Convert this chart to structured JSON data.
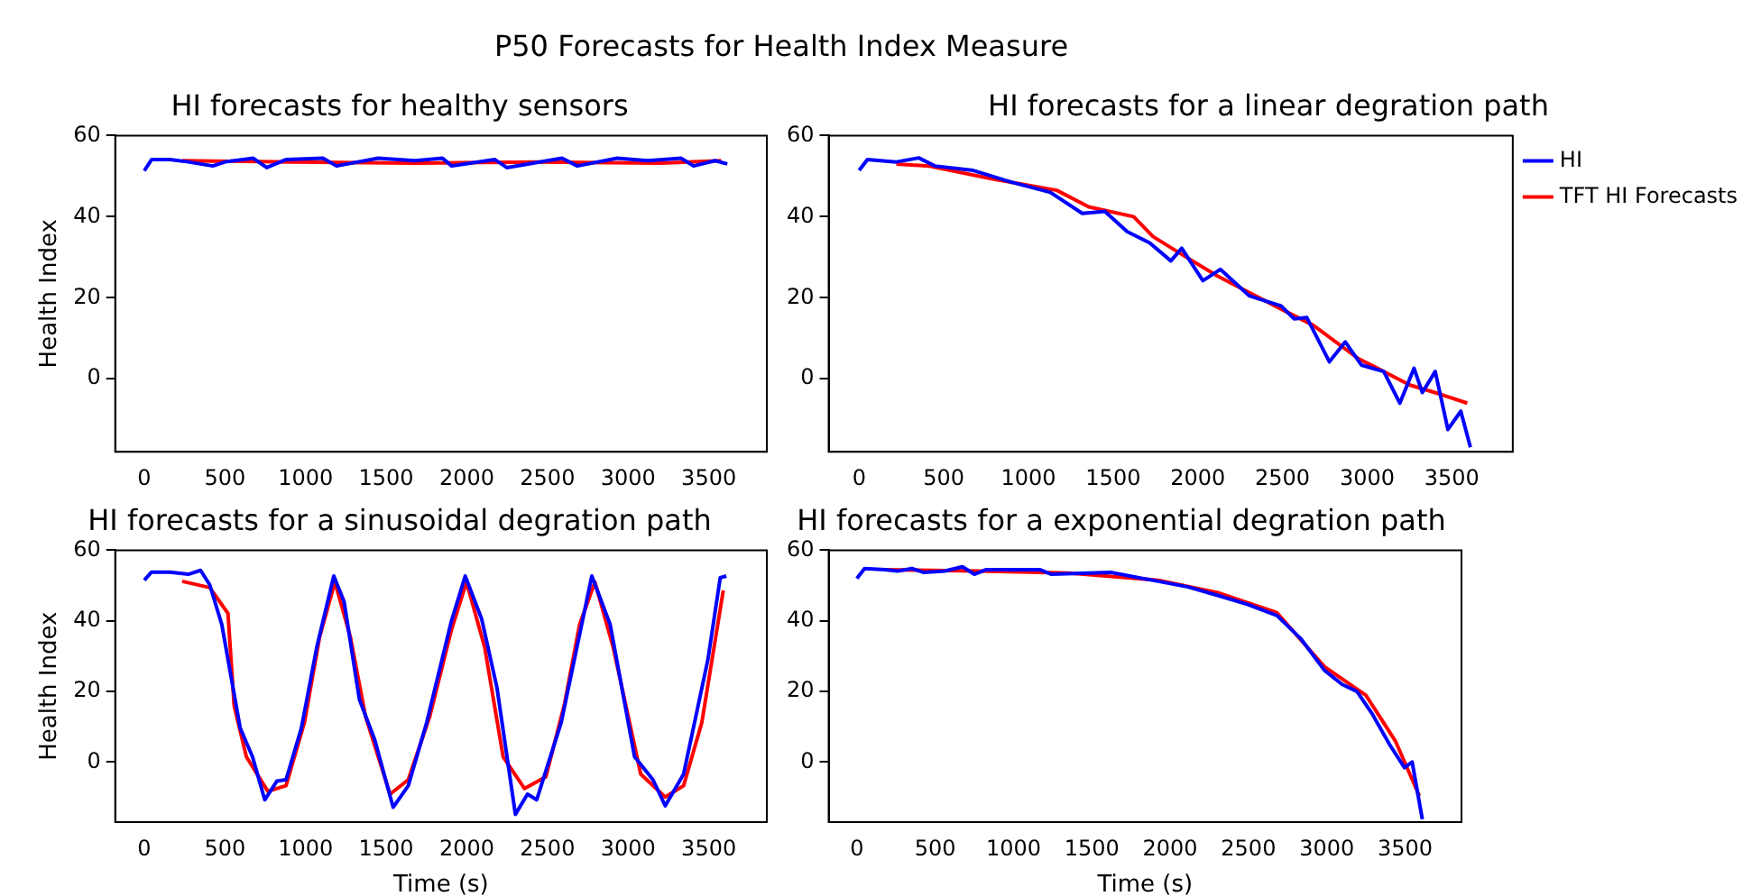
{
  "chart_data": [
    {
      "type": "other",
      "title": "P50 Forecasts for Health Index Measure"
    },
    {
      "type": "line",
      "title": "HI forecasts for healthy sensors",
      "ylabel": "Health Index",
      "xlim": [
        -180,
        3860
      ],
      "ylim": [
        -18,
        60
      ],
      "xticks": [
        0,
        500,
        1000,
        1500,
        2000,
        2500,
        3000,
        3500
      ],
      "yticks": [
        0,
        20,
        40,
        60
      ],
      "grid": false,
      "legend": false,
      "marker": "none",
      "line_style": "solid",
      "series": [
        {
          "color": "#0000ff",
          "x": [
            0,
            46,
            159,
            273,
            425,
            501,
            676,
            759,
            881,
            1108,
            1192,
            1450,
            1678,
            1849,
            1906,
            2172,
            2248,
            2590,
            2685,
            2932,
            3121,
            3330,
            3406,
            3539,
            3615
          ],
          "values": [
            51.3,
            54.1,
            54.1,
            53.5,
            52.5,
            53.5,
            54.4,
            52.1,
            54.1,
            54.4,
            52.5,
            54.4,
            53.8,
            54.4,
            52.5,
            54.1,
            52.1,
            54.4,
            52.5,
            54.4,
            53.8,
            54.4,
            52.5,
            53.8,
            53
          ]
        },
        {
          "color": "#ff0000",
          "x": [
            235,
            918,
            1678,
            2438,
            3197,
            3577
          ],
          "values": [
            53.8,
            53.5,
            53.2,
            53.5,
            53.2,
            53.8
          ]
        }
      ]
    },
    {
      "type": "line",
      "title": "HI forecasts for a linear degration path",
      "xlim": [
        -180,
        3860
      ],
      "ylim": [
        -18,
        60
      ],
      "xticks": [
        0,
        500,
        1000,
        1500,
        2000,
        2500,
        3000,
        3500
      ],
      "yticks": [
        0,
        20,
        40,
        60
      ],
      "grid": false,
      "legend": "top right",
      "marker": "none",
      "line_style": "solid",
      "series": [
        {
          "name": "HI",
          "color": "#0000ff",
          "x": [
            0,
            49,
            220,
            352,
            447,
            674,
            900,
            1129,
            1318,
            1451,
            1583,
            1716,
            1841,
            1905,
            2030,
            2133,
            2303,
            2492,
            2568,
            2644,
            2777,
            2871,
            2966,
            3098,
            3193,
            3277,
            3326,
            3402,
            3477,
            3553,
            3610
          ],
          "values": [
            51.4,
            54.1,
            53.5,
            54.5,
            52.5,
            51.4,
            48.5,
            46,
            40.8,
            41.3,
            36.3,
            33.5,
            29.1,
            32.2,
            24.2,
            27,
            20.5,
            18,
            14.8,
            15.1,
            4.2,
            9.1,
            3.4,
            1.8,
            -6,
            2.6,
            -3.4,
            1.8,
            -12.5,
            -8,
            -16.9
          ]
        },
        {
          "name": "TFT HI Forecasts",
          "color": "#ff0000",
          "x": [
            220,
            409,
            788,
            1167,
            1356,
            1621,
            1735,
            1924,
            2114,
            2303,
            2492,
            2682,
            2947,
            3061,
            3250,
            3440,
            3591
          ],
          "values": [
            53,
            52.5,
            49.3,
            46.5,
            42.4,
            40,
            35.1,
            30.2,
            25.4,
            21.3,
            17.2,
            13.2,
            5,
            2.6,
            -1.5,
            -3.9,
            -6
          ]
        }
      ]
    },
    {
      "type": "line",
      "title": "HI forecasts for a sinusoidal degration path",
      "xlabel": "Time (s)",
      "ylabel": "Health Index",
      "xlim": [
        -180,
        3860
      ],
      "ylim": [
        -17,
        60
      ],
      "xticks": [
        0,
        500,
        1000,
        1500,
        2000,
        2500,
        3000,
        3500
      ],
      "yticks": [
        0,
        20,
        40,
        60
      ],
      "grid": false,
      "legend": false,
      "marker": "none",
      "line_style": "solid",
      "series": [
        {
          "color": "#0000ff",
          "x": [
            0,
            45,
            159,
            273,
            349,
            406,
            481,
            538,
            595,
            671,
            747,
            822,
            879,
            974,
            1069,
            1175,
            1239,
            1334,
            1429,
            1543,
            1637,
            1751,
            1903,
            1990,
            2092,
            2187,
            2301,
            2376,
            2433,
            2585,
            2775,
            2889,
            3040,
            3154,
            3230,
            3344,
            3495,
            3571,
            3609
          ],
          "values": [
            51.5,
            53.8,
            53.8,
            53.2,
            54.3,
            50.2,
            38.9,
            24.2,
            9.6,
            1.5,
            -10.7,
            -5.4,
            -5,
            9.6,
            32.4,
            52.7,
            45.4,
            17.7,
            6.3,
            -12.8,
            -6.7,
            11.2,
            39.7,
            52.7,
            40.5,
            21,
            -14.8,
            -9.1,
            -10.7,
            11.2,
            52.7,
            38.9,
            1.5,
            -5,
            -12.4,
            -3.4,
            29.1,
            52.2,
            52.7
          ]
        },
        {
          "color": "#ff0000",
          "x": [
            235,
            406,
            519,
            557,
            633,
            766,
            879,
            993,
            1088,
            1182,
            1277,
            1372,
            1524,
            1637,
            1770,
            1903,
            1998,
            2111,
            2225,
            2358,
            2490,
            2604,
            2699,
            2794,
            2908,
            3078,
            3230,
            3344,
            3457,
            3590
          ],
          "values": [
            51.2,
            49.4,
            42.1,
            16,
            1.5,
            -8.3,
            -6.7,
            11.2,
            35.6,
            51,
            35.6,
            12.9,
            -9.1,
            -5,
            12.9,
            37.2,
            51,
            32.4,
            1.5,
            -7.5,
            -4.2,
            16.1,
            38.9,
            51,
            32.4,
            -3.4,
            -9.9,
            -6.7,
            11.2,
            48.6
          ]
        }
      ]
    },
    {
      "type": "line",
      "title": "HI forecasts for a exponential degration path",
      "xlabel": "Time (s)",
      "xlim": [
        -180,
        3860
      ],
      "ylim": [
        -17,
        60
      ],
      "xticks": [
        0,
        500,
        1000,
        1500,
        2000,
        2500,
        3000,
        3500
      ],
      "yticks": [
        0,
        20,
        40,
        60
      ],
      "grid": false,
      "legend": false,
      "marker": "none",
      "line_style": "solid",
      "series": [
        {
          "color": "#0000ff",
          "x": [
            0,
            49,
            182,
            261,
            352,
            428,
            561,
            674,
            750,
            826,
            1167,
            1242,
            1621,
            1924,
            2114,
            2303,
            2492,
            2682,
            2833,
            2985,
            3098,
            3193,
            3288,
            3402,
            3496,
            3545,
            3610
          ],
          "values": [
            52,
            54.8,
            54.5,
            54.1,
            54.8,
            53.7,
            54.1,
            55.3,
            53.2,
            54.5,
            54.5,
            53.2,
            53.7,
            51.2,
            49.6,
            47.2,
            44.7,
            41.5,
            35,
            26,
            22,
            20,
            13.8,
            4.9,
            -1.6,
            0,
            -16.2
          ]
        },
        {
          "color": "#ff0000",
          "x": [
            182,
            788,
            1356,
            1924,
            2303,
            2682,
            2985,
            3250,
            3440,
            3591
          ],
          "values": [
            54.5,
            54.1,
            53.5,
            51.5,
            48,
            42.3,
            27,
            18.9,
            5.8,
            -9.6
          ]
        }
      ]
    }
  ]
}
